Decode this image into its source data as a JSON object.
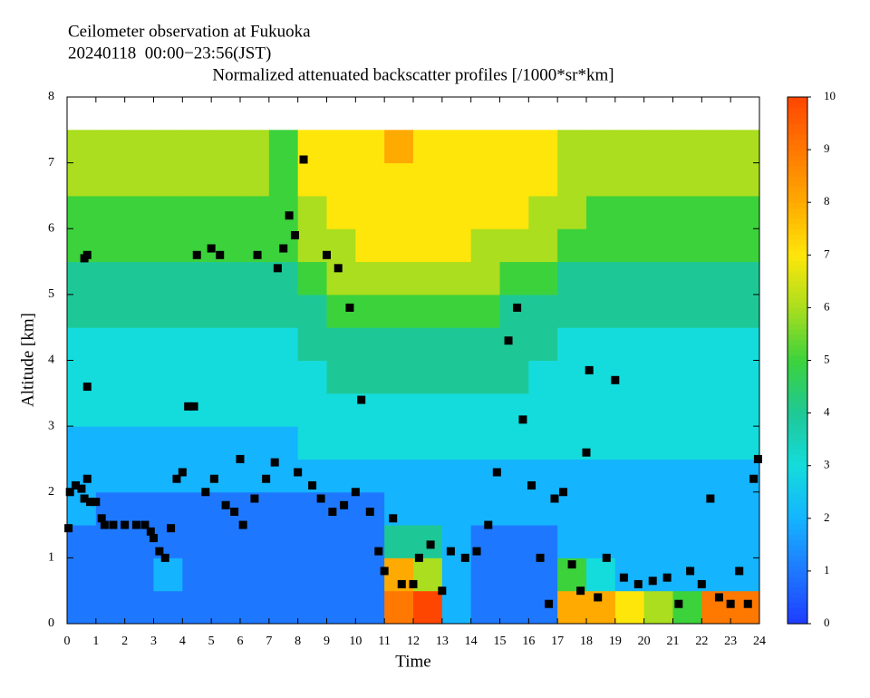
{
  "chart_data": {
    "type": "heatmap",
    "titles": [
      "Ceilometer observation at Fukuoka",
      "20240118  00:00−23:56(JST)"
    ],
    "title": "Normalized attenuated backscatter profiles [/1000*sr*km]",
    "xlabel": "Time",
    "ylabel": "Altitude [km]",
    "xlim": [
      0,
      24
    ],
    "xticks": [
      0,
      1,
      2,
      3,
      4,
      5,
      6,
      7,
      8,
      9,
      10,
      11,
      12,
      13,
      14,
      15,
      16,
      17,
      18,
      19,
      20,
      21,
      22,
      23,
      24
    ],
    "ylim": [
      0,
      8
    ],
    "yticks": [
      0,
      1,
      2,
      3,
      4,
      5,
      6,
      7,
      8
    ],
    "clim": [
      0,
      10
    ],
    "cticks": [
      0,
      1,
      2,
      3,
      4,
      5,
      6,
      7,
      8,
      9,
      10
    ],
    "colormap": [
      "#1e3cff",
      "#1e78ff",
      "#14b4ff",
      "#14dcdc",
      "#1ec896",
      "#3cd23c",
      "#aade1e",
      "#ffe60a",
      "#ffaa00",
      "#ff7800",
      "#ff4600"
    ],
    "x_edges": [
      0,
      1,
      2,
      3,
      4,
      5,
      6,
      7,
      8,
      9,
      10,
      11,
      12,
      13,
      14,
      15,
      16,
      17,
      18,
      19,
      20,
      21,
      22,
      23,
      24
    ],
    "y_edges": [
      0,
      0.5,
      1,
      1.5,
      2,
      2.5,
      3,
      3.5,
      4,
      4.5,
      5,
      5.5,
      6,
      6.5,
      7,
      7.5
    ],
    "z": [
      [
        1,
        1,
        1,
        1,
        1,
        1,
        1,
        1,
        1,
        1,
        1,
        9,
        10,
        2,
        1,
        1,
        1,
        8,
        8,
        7,
        6,
        5,
        9,
        9
      ],
      [
        1,
        1,
        1,
        2,
        1,
        1,
        1,
        1,
        1,
        1,
        1,
        8,
        6,
        2,
        1,
        1,
        1,
        5,
        3,
        2,
        2,
        2,
        2,
        2
      ],
      [
        1,
        1,
        1,
        1,
        1,
        1,
        1,
        1,
        1,
        1,
        1,
        4,
        4,
        2,
        1,
        1,
        1,
        2,
        2,
        2,
        2,
        2,
        2,
        2
      ],
      [
        2,
        1,
        1,
        1,
        1,
        1,
        1,
        1,
        1,
        1,
        1,
        2,
        2,
        2,
        2,
        2,
        2,
        2,
        2,
        2,
        2,
        2,
        2,
        2
      ],
      [
        2,
        2,
        2,
        2,
        2,
        2,
        2,
        2,
        2,
        2,
        2,
        2,
        2,
        2,
        2,
        2,
        2,
        2,
        2,
        2,
        2,
        2,
        2,
        2
      ],
      [
        2,
        2,
        2,
        2,
        2,
        2,
        2,
        2,
        3,
        3,
        3,
        3,
        3,
        3,
        3,
        3,
        3,
        3,
        3,
        3,
        3,
        3,
        3,
        3
      ],
      [
        3,
        3,
        3,
        3,
        3,
        3,
        3,
        3,
        3,
        3,
        3,
        3,
        3,
        3,
        3,
        3,
        3,
        3,
        3,
        3,
        3,
        3,
        3,
        3
      ],
      [
        3,
        3,
        3,
        3,
        3,
        3,
        3,
        3,
        3,
        4,
        4,
        4,
        4,
        4,
        4,
        4,
        3,
        3,
        3,
        3,
        3,
        3,
        3,
        3
      ],
      [
        3,
        3,
        3,
        3,
        3,
        3,
        3,
        3,
        4,
        4,
        4,
        4,
        4,
        4,
        4,
        4,
        4,
        3,
        3,
        3,
        3,
        3,
        3,
        3
      ],
      [
        4,
        4,
        4,
        4,
        4,
        4,
        4,
        4,
        4,
        5,
        5,
        5,
        5,
        5,
        5,
        4,
        4,
        4,
        4,
        4,
        4,
        4,
        4,
        4
      ],
      [
        4,
        4,
        4,
        4,
        4,
        4,
        4,
        4,
        5,
        6,
        6,
        6,
        6,
        6,
        6,
        5,
        5,
        4,
        4,
        4,
        4,
        4,
        4,
        4
      ],
      [
        5,
        5,
        5,
        5,
        5,
        5,
        5,
        5,
        6,
        6,
        7,
        7,
        7,
        7,
        6,
        6,
        6,
        5,
        5,
        5,
        5,
        5,
        5,
        5
      ],
      [
        5,
        5,
        5,
        5,
        5,
        5,
        5,
        5,
        6,
        7,
        7,
        7,
        7,
        7,
        7,
        7,
        6,
        6,
        5,
        5,
        5,
        5,
        5,
        5
      ],
      [
        6,
        6,
        6,
        6,
        6,
        6,
        6,
        5,
        7,
        7,
        7,
        7,
        7,
        7,
        7,
        7,
        7,
        6,
        6,
        6,
        6,
        6,
        6,
        6
      ],
      [
        6,
        6,
        6,
        6,
        6,
        6,
        6,
        5,
        7,
        7,
        7,
        8,
        7,
        7,
        7,
        7,
        7,
        6,
        6,
        6,
        6,
        6,
        6,
        6
      ]
    ],
    "cloud_base": {
      "color": "#000000",
      "x": [
        0.05,
        0.1,
        0.3,
        0.5,
        0.6,
        0.7,
        0.6,
        0.7,
        0.7,
        0.8,
        1.0,
        1.2,
        1.3,
        1.6,
        2.0,
        2.4,
        2.7,
        2.9,
        3.0,
        3.2,
        3.4,
        3.6,
        3.8,
        4.0,
        4.2,
        4.4,
        4.5,
        4.8,
        5.0,
        5.1,
        5.3,
        5.5,
        5.8,
        6.0,
        6.1,
        6.5,
        6.6,
        6.9,
        7.2,
        7.3,
        7.5,
        7.7,
        7.9,
        8.0,
        8.2,
        8.5,
        8.8,
        9.0,
        9.2,
        9.4,
        9.6,
        9.8,
        10.0,
        10.2,
        10.5,
        10.8,
        11.0,
        11.3,
        11.6,
        12.0,
        12.2,
        12.6,
        13.0,
        13.3,
        13.8,
        14.2,
        14.6,
        14.9,
        15.3,
        15.6,
        15.8,
        16.1,
        16.4,
        16.7,
        16.9,
        17.2,
        17.5,
        17.8,
        18.0,
        18.1,
        18.4,
        18.7,
        19.0,
        19.3,
        19.8,
        20.3,
        20.8,
        21.2,
        21.6,
        22.0,
        22.3,
        22.6,
        23.0,
        23.3,
        23.6,
        23.8,
        23.95
      ],
      "y": [
        1.45,
        2.0,
        2.1,
        2.05,
        1.9,
        2.2,
        5.55,
        5.6,
        3.6,
        1.85,
        1.85,
        1.6,
        1.5,
        1.5,
        1.5,
        1.5,
        1.5,
        1.4,
        1.3,
        1.1,
        1.0,
        1.45,
        2.2,
        2.3,
        3.3,
        3.3,
        5.6,
        2.0,
        5.7,
        2.2,
        5.6,
        1.8,
        1.7,
        2.5,
        1.5,
        1.9,
        5.6,
        2.2,
        2.45,
        5.4,
        5.7,
        6.2,
        5.9,
        2.3,
        7.05,
        2.1,
        1.9,
        5.6,
        1.7,
        5.4,
        1.8,
        4.8,
        2.0,
        3.4,
        1.7,
        1.1,
        0.8,
        1.6,
        0.6,
        0.6,
        1.0,
        1.2,
        0.5,
        1.1,
        1.0,
        1.1,
        1.5,
        2.3,
        4.3,
        4.8,
        3.1,
        2.1,
        1.0,
        0.3,
        1.9,
        2.0,
        0.9,
        0.5,
        2.6,
        3.85,
        0.4,
        1.0,
        3.7,
        0.7,
        0.6,
        0.65,
        0.7,
        0.3,
        0.8,
        0.6,
        1.9,
        0.4,
        0.3,
        0.8,
        0.3,
        2.2,
        2.5
      ]
    }
  }
}
